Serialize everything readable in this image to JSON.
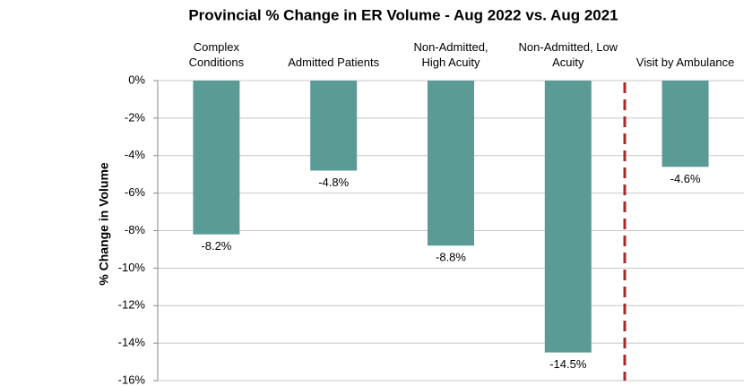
{
  "chart_data": {
    "type": "bar",
    "title": "Provincial % Change in ER Volume - Aug 2022 vs. Aug 2021",
    "y_label": "% Change in Volume",
    "categories": [
      "Complex Conditions",
      "Admitted Patients",
      "Non-Admitted, High Acuity",
      "Non-Admitted, Low Acuity",
      "Visit by Ambulance"
    ],
    "values": [
      -8.2,
      -4.8,
      -8.8,
      -14.5,
      -4.6
    ],
    "value_labels": [
      "-8.2%",
      "-4.8%",
      "-8.8%",
      "-14.5%",
      "-4.6%"
    ],
    "color": "#5b9b96",
    "ylim": [
      -16,
      0
    ],
    "yticks": [
      {
        "value": 0,
        "label": "0%"
      },
      {
        "value": -2,
        "label": "-2%"
      },
      {
        "value": -4,
        "label": "-4%"
      },
      {
        "value": -6,
        "label": "-6%"
      },
      {
        "value": -8,
        "label": "-8%"
      },
      {
        "value": -10,
        "label": "-10%"
      },
      {
        "value": -12,
        "label": "-12%"
      },
      {
        "value": -14,
        "label": "-14%"
      },
      {
        "value": -16,
        "label": "-16%"
      }
    ],
    "grid": true
  }
}
